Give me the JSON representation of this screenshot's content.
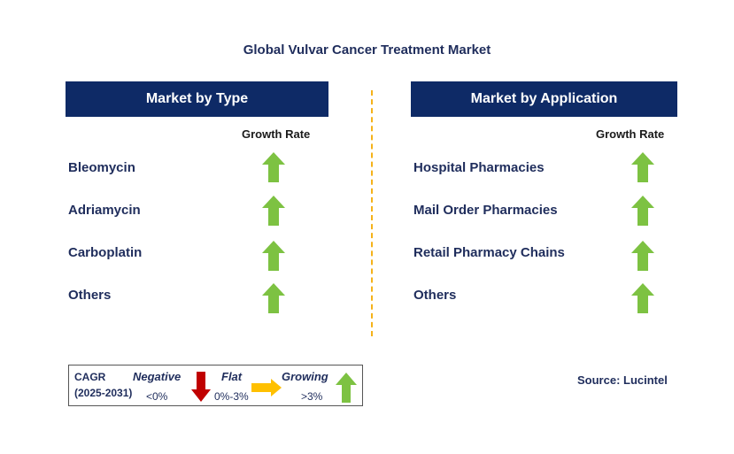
{
  "title": "Global Vulvar Cancer Treatment Market",
  "left_panel": {
    "header": "Market by Type",
    "growth_header": "Growth Rate",
    "items": [
      {
        "label": "Bleomycin",
        "trend": "growing"
      },
      {
        "label": "Adriamycin",
        "trend": "growing"
      },
      {
        "label": "Carboplatin",
        "trend": "growing"
      },
      {
        "label": "Others",
        "trend": "growing"
      }
    ]
  },
  "right_panel": {
    "header": "Market by Application",
    "growth_header": "Growth Rate",
    "items": [
      {
        "label": "Hospital Pharmacies",
        "trend": "growing"
      },
      {
        "label": "Mail Order Pharmacies",
        "trend": "growing"
      },
      {
        "label": "Retail Pharmacy Chains",
        "trend": "growing"
      },
      {
        "label": "Others",
        "trend": "growing"
      }
    ]
  },
  "legend": {
    "cagr_line1": "CAGR",
    "cagr_line2": "(2025-2031)",
    "negative": {
      "label": "Negative",
      "range": "<0%",
      "icon": "down-arrow-icon",
      "color": "#c00000"
    },
    "flat": {
      "label": "Flat",
      "range": "0%-3%",
      "icon": "right-arrow-icon",
      "color": "#ffc000"
    },
    "growing": {
      "label": "Growing",
      "range": ">3%",
      "icon": "up-arrow-icon",
      "color": "#7dc242"
    }
  },
  "source": "Source: Lucintel",
  "colors": {
    "header_bg": "#0e2a66",
    "text": "#1f2d5c",
    "divider": "#f5b21a"
  }
}
